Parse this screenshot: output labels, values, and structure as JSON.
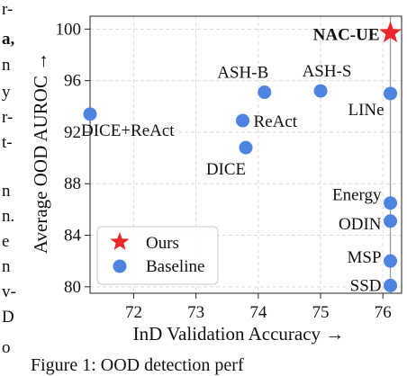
{
  "left_fragments": [
    "r-",
    "a,",
    "n",
    "y",
    "r-",
    "t-",
    "n",
    "n.",
    "e",
    "n",
    "v-",
    "D",
    "o"
  ],
  "caption_fragment": "Figure 1: OOD detection perf",
  "chart_data": {
    "type": "scatter",
    "xlabel": "InD Validation Accuracy →",
    "ylabel": "Average OOD AUROC →",
    "xlim": [
      71.3,
      76.3
    ],
    "ylim": [
      79.5,
      101
    ],
    "xticks": [
      72,
      73,
      74,
      75,
      76
    ],
    "yticks": [
      80,
      84,
      88,
      92,
      96,
      100
    ],
    "grid": true,
    "legend_position": "bottom-left",
    "legend": [
      {
        "label": "Ours",
        "marker": "star",
        "color": "#e8282b"
      },
      {
        "label": "Baseline",
        "marker": "circle",
        "color": "#4c84e0"
      }
    ],
    "reference_line_x": 76.12,
    "series": [
      {
        "name": "Ours",
        "marker": "star",
        "color": "#e8282b",
        "points": [
          {
            "label": "NAC-UE",
            "x": 76.12,
            "y": 99.7,
            "bold": true
          }
        ]
      },
      {
        "name": "Baseline",
        "marker": "circle",
        "color": "#4c84e0",
        "points": [
          {
            "label": "DICE+ReAct",
            "x": 71.3,
            "y": 93.4
          },
          {
            "label": "ASH-B",
            "x": 74.1,
            "y": 95.1
          },
          {
            "label": "ASH-S",
            "x": 75.0,
            "y": 95.2
          },
          {
            "label": "LINe",
            "x": 76.12,
            "y": 95.0
          },
          {
            "label": "ReAct",
            "x": 73.75,
            "y": 92.9
          },
          {
            "label": "DICE",
            "x": 73.8,
            "y": 90.8
          },
          {
            "label": "Energy",
            "x": 76.12,
            "y": 86.5
          },
          {
            "label": "ODIN",
            "x": 76.12,
            "y": 85.1
          },
          {
            "label": "MSP",
            "x": 76.12,
            "y": 82.0
          },
          {
            "label": "SSD",
            "x": 76.12,
            "y": 80.1
          }
        ]
      }
    ]
  }
}
